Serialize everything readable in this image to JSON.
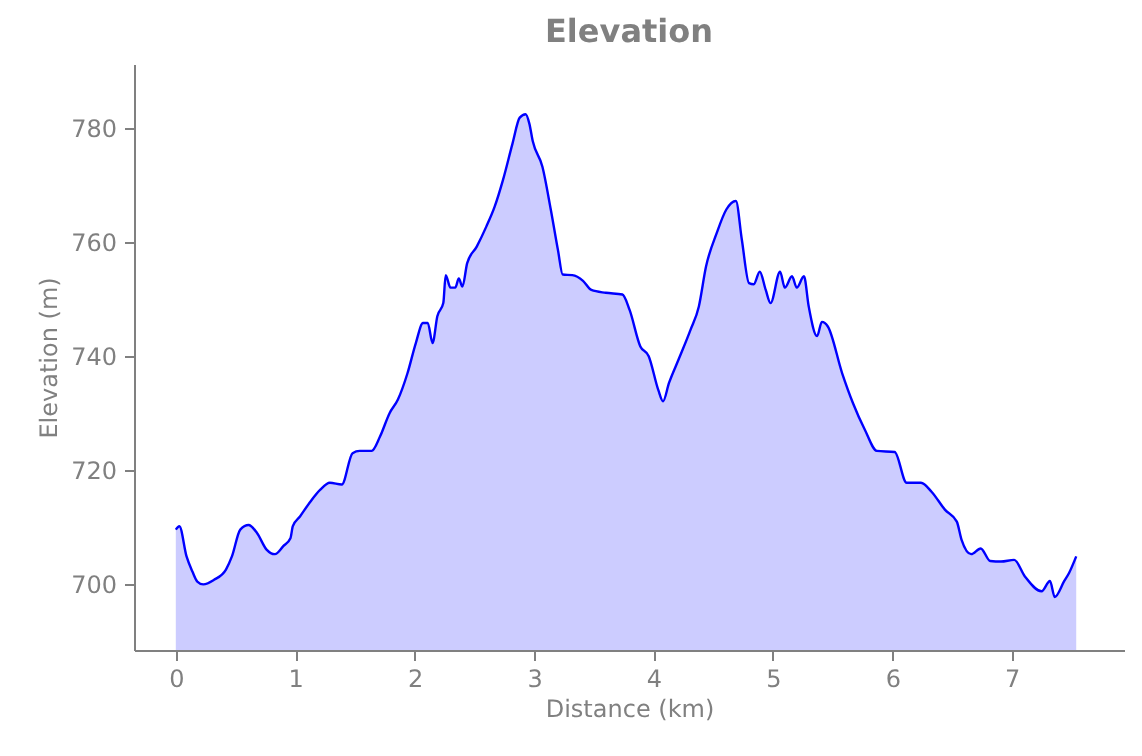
{
  "chart_data": {
    "type": "area",
    "title": "Elevation",
    "xlabel": "Distance (km)",
    "ylabel": "Elevation (m)",
    "x": [
      0,
      0.03,
      0.09,
      0.14,
      0.18,
      0.23,
      0.32,
      0.42,
      0.47,
      0.54,
      0.61,
      0.68,
      0.76,
      0.83,
      0.9,
      0.96,
      0.98,
      1.04,
      1.12,
      1.21,
      1.29,
      1.39,
      1.48,
      1.54,
      1.64,
      1.71,
      1.79,
      1.86,
      1.94,
      2.01,
      2.07,
      2.11,
      2.15,
      2.19,
      2.24,
      2.26,
      2.3,
      2.34,
      2.37,
      2.4,
      2.44,
      2.52,
      2.6,
      2.67,
      2.74,
      2.82,
      2.88,
      2.93,
      2.96,
      2.99,
      3.07,
      3.14,
      3.2,
      3.24,
      3.32,
      3.41,
      3.48,
      3.6,
      3.74,
      3.8,
      3.89,
      3.96,
      4.04,
      4.08,
      4.13,
      4.21,
      4.31,
      4.38,
      4.44,
      4.53,
      4.61,
      4.69,
      4.74,
      4.8,
      4.84,
      4.89,
      4.94,
      4.98,
      5.06,
      5.1,
      5.16,
      5.2,
      5.26,
      5.3,
      5.37,
      5.41,
      5.46,
      5.58,
      5.67,
      5.77,
      5.87,
      6.02,
      6.12,
      6.24,
      6.33,
      6.44,
      6.54,
      6.58,
      6.66,
      6.74,
      6.82,
      6.91,
      7.02,
      7.11,
      7.25,
      7.32,
      7.36,
      7.44,
      7.48,
      7.54
    ],
    "series": [
      {
        "color": "#0000ff",
        "values": [
          709.6,
          710.2,
          704.9,
          702.2,
          700.5,
          700,
          700.8,
          702.6,
          704.9,
          709.6,
          710.4,
          709,
          706.1,
          705.3,
          706.7,
          708.1,
          710.2,
          711.9,
          714.3,
          716.6,
          717.8,
          717.5,
          723,
          723.4,
          723.4,
          725.9,
          730,
          732.4,
          737,
          742.3,
          745.8,
          745.8,
          742.3,
          747,
          749.3,
          754.2,
          752,
          752,
          753.6,
          752.2,
          756.3,
          759.2,
          762.7,
          766.2,
          770.9,
          777.3,
          781.8,
          782.4,
          780.8,
          777.6,
          773.2,
          765.7,
          758.6,
          754.3,
          754.2,
          753.2,
          751.6,
          751.1,
          750.8,
          748.1,
          741.7,
          740,
          734.1,
          732.1,
          735.3,
          739.4,
          744.6,
          748.7,
          755.7,
          761.6,
          765.7,
          767.2,
          760.4,
          752.8,
          752.6,
          754.8,
          751.6,
          749.3,
          754.8,
          752,
          754,
          752,
          754,
          748.7,
          743.5,
          746,
          745.2,
          737,
          731.8,
          727.1,
          723.4,
          723.2,
          717.8,
          717.8,
          716.2,
          713.1,
          711,
          707.8,
          705.3,
          706.3,
          704.1,
          704,
          704.3,
          701.4,
          698.8,
          700.6,
          697.8,
          700.6,
          702,
          704.9
        ]
      }
    ],
    "xlim": [
      -0.35,
      7.94
    ],
    "ylim": [
      688.5,
      791.2
    ],
    "xticks": [
      0,
      1,
      2,
      3,
      4,
      5,
      6,
      7
    ],
    "yticks": [
      700,
      720,
      740,
      760,
      780
    ],
    "grid": false
  }
}
